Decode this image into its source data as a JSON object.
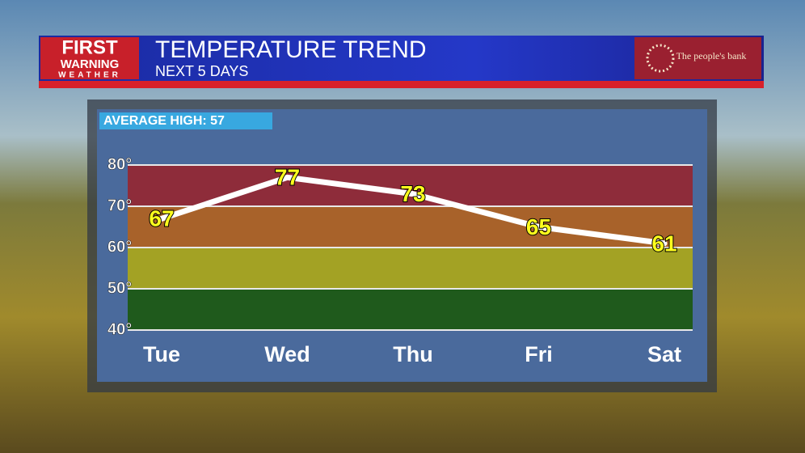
{
  "branding": {
    "logo_lines": [
      "FIRST",
      "WARNING",
      "WEATHER"
    ],
    "sponsor": "The people's bank"
  },
  "chart_data": {
    "type": "line",
    "title": "TEMPERATURE TREND",
    "subtitle": "NEXT 5 DAYS",
    "annotation": "AVERAGE HIGH: 57",
    "categories": [
      "Tue",
      "Wed",
      "Thu",
      "Fri",
      "Sat"
    ],
    "values": [
      67,
      77,
      73,
      65,
      61
    ],
    "color": "#ffffff",
    "label_color": "#ffff1e",
    "ylim": [
      40,
      80
    ],
    "yticks": [
      {
        "value": 40,
        "label": "40°"
      },
      {
        "value": 50,
        "label": "50°"
      },
      {
        "value": 60,
        "label": "60°"
      },
      {
        "value": 70,
        "label": "70°"
      },
      {
        "value": 80,
        "label": "80°"
      }
    ],
    "bands": [
      {
        "from": 40,
        "to": 50,
        "color": "#1f5a1c"
      },
      {
        "from": 50,
        "to": 60,
        "color": "#a3a224"
      },
      {
        "from": 60,
        "to": 70,
        "color": "#a8622a"
      },
      {
        "from": 70,
        "to": 80,
        "color": "#8e2c3a"
      }
    ],
    "grid": true
  }
}
